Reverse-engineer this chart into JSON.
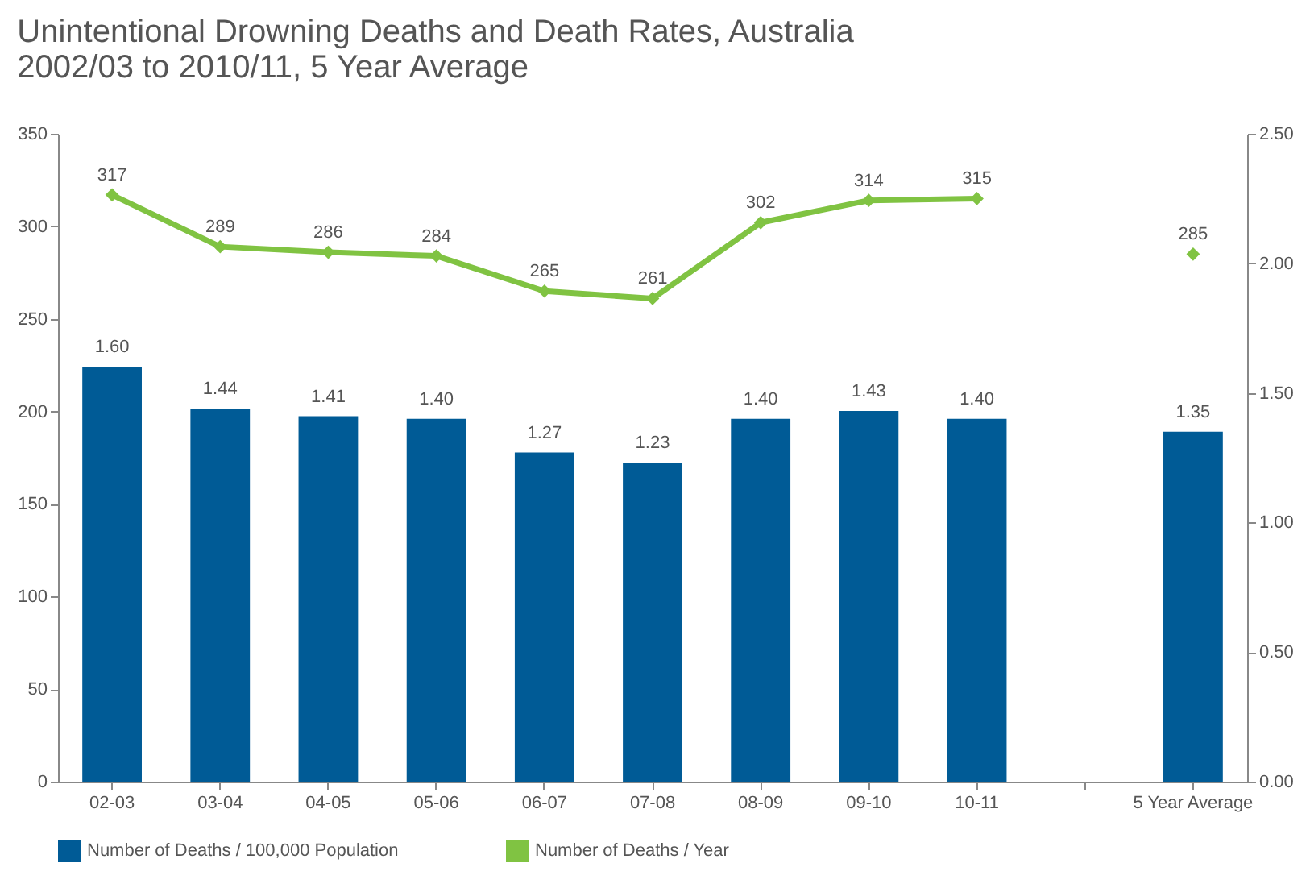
{
  "chart_data": {
    "type": "bar",
    "title": "Unintentional Drowning Deaths and Death Rates, Australia\n2002/03 to 2010/11, 5 Year Average",
    "categories": [
      "02-03",
      "03-04",
      "04-05",
      "05-06",
      "06-07",
      "07-08",
      "08-09",
      "09-10",
      "10-11",
      null,
      "5 Year Average"
    ],
    "series": [
      {
        "name": "Number of Deaths / 100,000 Population",
        "axis": "y2",
        "color": "#005b96",
        "values": [
          1.6,
          1.44,
          1.41,
          1.4,
          1.27,
          1.23,
          1.4,
          1.43,
          1.4,
          null,
          1.35
        ],
        "value_labels": [
          "1.60",
          "1.44",
          "1.41",
          "1.40",
          "1.27",
          "1.23",
          "1.40",
          "1.43",
          "1.40",
          null,
          "1.35"
        ]
      },
      {
        "name": "Number of Deaths / Year",
        "type": "line",
        "color": "#80c342",
        "marker": "diamond",
        "values": [
          317,
          289,
          286,
          284,
          265,
          261,
          302,
          314,
          315,
          null,
          285
        ],
        "value_labels": [
          "317",
          "289",
          "286",
          "284",
          "265",
          "261",
          "302",
          "314",
          "315",
          null,
          "285"
        ]
      }
    ],
    "ylim": [
      0,
      350
    ],
    "yticks": [
      0,
      50,
      100,
      150,
      200,
      250,
      300,
      350
    ],
    "y2lim": [
      0,
      2.5
    ],
    "y2ticks": [
      {
        "value": 0,
        "label": "0.00"
      },
      {
        "value": 0.5,
        "label": "0.50"
      },
      {
        "value": 1,
        "label": "1.00"
      },
      {
        "value": 1.5,
        "label": "1.50"
      },
      {
        "value": 2,
        "label": "2.00"
      },
      {
        "value": 2.5,
        "label": "2.50"
      }
    ],
    "legend": "bottom",
    "grid": false
  }
}
